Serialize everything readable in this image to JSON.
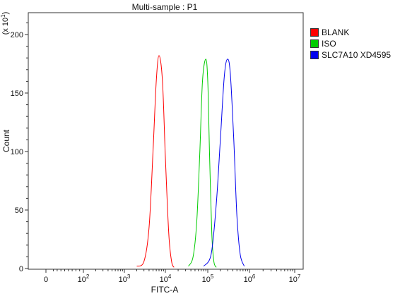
{
  "chart_data": {
    "type": "line",
    "title": "Multi-sample : P1",
    "xlabel": "FITC-A",
    "ylabel": "Count",
    "y_multiplier_label": "(x 10",
    "y_multiplier_exp": "1",
    "y_multiplier_close": ")",
    "x_scale": "biexponential",
    "x_tick_labels": [
      {
        "base": "0",
        "exp": ""
      },
      {
        "base": "10",
        "exp": "2"
      },
      {
        "base": "10",
        "exp": "3"
      },
      {
        "base": "10",
        "exp": "4"
      },
      {
        "base": "10",
        "exp": "5"
      },
      {
        "base": "10",
        "exp": "6"
      },
      {
        "base": "10",
        "exp": "7"
      }
    ],
    "y_ticks": [
      0,
      50,
      100,
      150,
      200
    ],
    "ylim": [
      0,
      220
    ],
    "grid": false,
    "legend_position": "right",
    "series": [
      {
        "name": "BLANK",
        "color": "#ff0000",
        "peak_x": 7000,
        "peak_y": 182,
        "x": [
          2000,
          3000,
          4000,
          5000,
          6000,
          7000,
          8500,
          10000,
          12000,
          14000,
          16000
        ],
        "y": [
          2,
          6,
          35,
          100,
          160,
          182,
          160,
          95,
          30,
          6,
          1
        ]
      },
      {
        "name": "ISO",
        "color": "#00cc00",
        "peak_x": 90000,
        "peak_y": 179,
        "x": [
          35000,
          45000,
          55000,
          65000,
          75000,
          90000,
          100000,
          110000,
          125000,
          140000,
          160000
        ],
        "y": [
          2,
          10,
          40,
          100,
          160,
          179,
          160,
          100,
          30,
          6,
          1
        ]
      },
      {
        "name": "SLC7A10 XD4595",
        "color": "#0000ee",
        "peak_x": 300000,
        "peak_y": 179,
        "x": [
          80000,
          120000,
          160000,
          200000,
          250000,
          300000,
          350000,
          420000,
          500000,
          600000,
          750000
        ],
        "y": [
          2,
          12,
          55,
          110,
          165,
          179,
          165,
          110,
          45,
          12,
          2
        ]
      }
    ]
  }
}
